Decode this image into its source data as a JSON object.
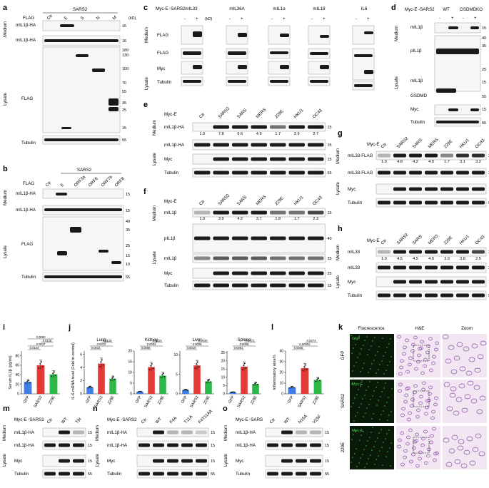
{
  "panels": {
    "a": {
      "letter": "a",
      "group": "SARS2",
      "flag_label": "FLAG",
      "lanes": [
        "Ctr",
        "E",
        "S",
        "N",
        "M"
      ],
      "rows": [
        "mIL1β-HA",
        "mIL1β-HA",
        "FLAG",
        "Tubulin"
      ],
      "sections": [
        "Medium",
        "Lysate"
      ],
      "ladder_header": "(kD)",
      "ladder": [
        "15",
        "15",
        "180",
        "130",
        "100",
        "70",
        "55",
        "35",
        "25",
        "15",
        "55"
      ]
    },
    "b": {
      "letter": "b",
      "group": "SARS2",
      "flag_label": "FLAG",
      "lanes": [
        "Ctr",
        "E",
        "ORF3a",
        "ORF6",
        "ORF7b",
        "ORF8"
      ],
      "rows": [
        "mIL1β-HA",
        "mIL1β-HA",
        "FLAG",
        "Tubulin"
      ],
      "sections": [
        "Medium",
        "Lysate"
      ],
      "ladder": [
        "15",
        "15",
        "40",
        "35",
        "25",
        "15",
        "10",
        "55"
      ]
    },
    "c": {
      "letter": "c",
      "treatment": "Myc-E -SARS2",
      "signs": [
        "-",
        "+"
      ],
      "ladder_header": "(kD)",
      "groups": [
        "mIL33",
        "mIL36A",
        "mIL1α",
        "mIL18",
        "IL6"
      ],
      "rows": [
        "FLAG",
        "FLAG",
        "Myc",
        "Tubulin"
      ],
      "sections": [
        "Medium",
        "Lysate"
      ]
    },
    "d": {
      "letter": "d",
      "treatment": "Myc-E -SARS2",
      "groups": [
        "WT",
        "GSDMDKO"
      ],
      "signs": [
        "-",
        "+"
      ],
      "rows": [
        "mIL1β",
        "pIL1β",
        "mIL1β",
        "GSDMD",
        "Myc",
        "Tubulin"
      ],
      "sections": [
        "Medium",
        "Lysate"
      ],
      "ladder": [
        "15",
        "40",
        "35",
        "25",
        "15",
        "55",
        "15",
        "55"
      ]
    },
    "e": {
      "letter": "e",
      "treatment": "Myc-E",
      "lanes": [
        "Ctr",
        "SARS2",
        "SARS",
        "MERS",
        "229E",
        "HKU1",
        "OC43"
      ],
      "rows": [
        "mIL1β-HA",
        "mIL1β-HA",
        "Myc",
        "Tubulin"
      ],
      "sections": [
        "Medium",
        "Lysate"
      ],
      "quant": [
        "1.0",
        "7.8",
        "6.6",
        "4.9",
        "1.7",
        "2.9",
        "2.7"
      ],
      "ladder": [
        "15",
        "15",
        "15",
        "55"
      ]
    },
    "f": {
      "letter": "f",
      "treatment": "Myc-E",
      "lanes": [
        "Ctr",
        "SARS2",
        "SARS",
        "MERS",
        "229E",
        "HKU1",
        "OC43"
      ],
      "rows": [
        "mIL1β",
        "pIL1β",
        "mIL1β",
        "Myc",
        "Tubulin"
      ],
      "sections": [
        "Medium",
        "Lysate"
      ],
      "quant": [
        "1.0",
        "3.9",
        "4.2",
        "3.7",
        "1.8",
        "1.7",
        "2.3"
      ],
      "ladder": [
        "15",
        "40",
        "35",
        "25",
        "15",
        "15",
        "55"
      ]
    },
    "g": {
      "letter": "g",
      "treatment": "Myc-E",
      "lanes": [
        "Ctr",
        "SARS2",
        "SARS",
        "MERS",
        "229E",
        "HKU1",
        "OC43"
      ],
      "rows": [
        "mIL33-FLAG",
        "mIL33-FLAG",
        "Myc",
        "Tubulin"
      ],
      "sections": [
        "Medium",
        "Lysate"
      ],
      "quant": [
        "1.0",
        "4.8",
        "4.2",
        "4.9",
        "1.7",
        "3.1",
        "3.2"
      ],
      "ladder": [
        "25",
        "25",
        "15",
        "55"
      ]
    },
    "h": {
      "letter": "h",
      "treatment": "Myc-E",
      "lanes": [
        "Ctr",
        "SARS2",
        "SARS",
        "MERS",
        "229E",
        "HKU1",
        "OC43"
      ],
      "rows": [
        "mIL33",
        "mIL33",
        "Myc",
        "Tubulin"
      ],
      "sections": [
        "Medium",
        "Lysate"
      ],
      "quant": [
        "1.0",
        "4.5",
        "4.5",
        "4.9",
        "3.9",
        "3.8",
        "2.5"
      ],
      "ladder": [
        "25",
        "25",
        "15",
        "55"
      ]
    },
    "i": {
      "letter": "i"
    },
    "j": {
      "letter": "j"
    },
    "k": {
      "letter": "k",
      "columns": [
        "Fluorescence",
        "H&E",
        "Zoom"
      ],
      "rows": [
        "GFP",
        "SARS2",
        "229E"
      ],
      "overlays": [
        "GFP",
        "Myc-E",
        "Myc-E"
      ]
    },
    "l": {
      "letter": "l"
    },
    "m": {
      "letter": "m",
      "treatment": "Myc-E -SARS2",
      "lanes": [
        "Ctr",
        "WT",
        "T9I"
      ],
      "rows": [
        "mIL1β-HA",
        "mIL1β-HA",
        "Myc",
        "Tubulin"
      ],
      "sections": [
        "Medium",
        "Lysate"
      ],
      "ladder": [
        "15",
        "15",
        "15",
        "55"
      ]
    },
    "n": {
      "letter": "n",
      "treatment": "Myc-E -SARS2",
      "lanes": [
        "Ctr",
        "WT",
        "F4A",
        "T11A",
        "F4T11AA"
      ],
      "rows": [
        "mIL1β-HA",
        "mIL1β-HA",
        "Myc",
        "Tubulin"
      ],
      "sections": [
        "Medium",
        "Lysate"
      ],
      "ladder": [
        "15",
        "15",
        "15",
        "55"
      ]
    },
    "o": {
      "letter": "o",
      "treatment": "Myc-E -SARS",
      "lanes": [
        "Ctr",
        "WT",
        "N15A",
        "V25F"
      ],
      "rows": [
        "mIL1β-HA",
        "mIL1β-HA",
        "Myc",
        "Tubulin"
      ],
      "sections": [
        "Medium",
        "Lysate"
      ],
      "ladder": [
        "15",
        "15",
        "15",
        "55"
      ]
    }
  },
  "chart_data": [
    {
      "type": "bar",
      "panel": "i",
      "ylabel": "Serum IL1β (pg/ml)",
      "categories": [
        "GFP",
        "SARS2",
        "229E"
      ],
      "values": [
        25,
        60,
        41
      ],
      "ylim": [
        0,
        90
      ],
      "yticks": [
        "0",
        "20",
        "40",
        "60",
        "80"
      ],
      "pvalues": [
        "0.0154",
        "0.0037",
        "0.0126",
        "0.0060"
      ],
      "colors": [
        "#3f7ee8",
        "#e53935",
        "#2db84a"
      ]
    },
    {
      "type": "bar",
      "panel": "j",
      "ylabel": "IL-6 mRNA level (Fold to control)",
      "colors": [
        "#3f7ee8",
        "#e53935",
        "#2db84a"
      ],
      "subplots": [
        {
          "title": "Lung",
          "categories": [
            "GFP",
            "SARS2",
            "229E"
          ],
          "values": [
            1,
            4.6,
            2.3
          ],
          "ylim": [
            0,
            6.5
          ],
          "yticks": [
            "0",
            "2",
            "4",
            "6"
          ],
          "pvalues": [
            "0.0015",
            "0.0012",
            "0.0126"
          ]
        },
        {
          "title": "Kidney",
          "categories": [
            "GFP",
            "SARS2",
            "229E"
          ],
          "values": [
            1,
            12.5,
            8.5
          ],
          "ylim": [
            0,
            20
          ],
          "yticks": [
            "0",
            "5",
            "10",
            "15",
            "20"
          ],
          "pvalues": [
            "0.0088",
            "0.0003",
            "0.0223"
          ]
        },
        {
          "title": "Liver",
          "categories": [
            "GFP",
            "SARS2",
            "229E"
          ],
          "values": [
            1,
            7.3,
            3.2
          ],
          "ylim": [
            0,
            11
          ],
          "yticks": [
            "0",
            "5",
            "10"
          ],
          "pvalues": [
            "0.0019",
            "0.0006",
            "0.0040"
          ]
        },
        {
          "title": "Spleen",
          "categories": [
            "GFP",
            "SARS2",
            "229E"
          ],
          "values": [
            1,
            16.5,
            6
          ],
          "ylim": [
            0,
            26
          ],
          "yticks": [
            "0",
            "5",
            "10",
            "15",
            "20",
            "25"
          ],
          "pvalues": [
            "0.0061",
            "0.0006",
            "0.0072"
          ]
        }
      ]
    },
    {
      "type": "bar",
      "panel": "l",
      "ylabel": "Inflammatory area%",
      "categories": [
        "GFP",
        "SARS2",
        "229E"
      ],
      "values": [
        6,
        24,
        13
      ],
      "ylim": [
        0,
        40
      ],
      "yticks": [
        "0",
        "10",
        "20",
        "30",
        "40"
      ],
      "pvalues": [
        "0.0045",
        "0.00002",
        "0.0273"
      ],
      "colors": [
        "#3f7ee8",
        "#e53935",
        "#2db84a"
      ]
    }
  ]
}
